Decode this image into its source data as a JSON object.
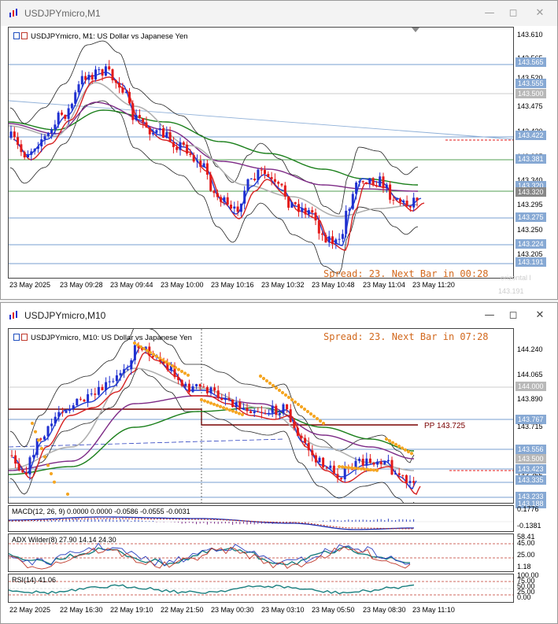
{
  "top_window": {
    "title": "USDJPYmicro,M1",
    "chart_header": "USDJPYmicro, M1:  US Dollar vs Japanese Yen",
    "spread_text": "Spread: 23. Next Bar in 00:28",
    "price_ticks": [
      "143.610",
      "143.565",
      "143.520",
      "143.475",
      "143.430",
      "143.385",
      "143.340",
      "143.295",
      "143.250",
      "143.205"
    ],
    "tags": [
      {
        "text": "143.565",
        "style": "blue"
      },
      {
        "text": "143.555",
        "style": "blue"
      },
      {
        "text": "143.500",
        "style": "grey"
      },
      {
        "text": "143.422",
        "style": "blue"
      },
      {
        "text": "143.381",
        "style": "blue"
      },
      {
        "text": "143.320",
        "style": "blue"
      },
      {
        "text": "143.320",
        "style": "dark"
      },
      {
        "text": "143.275",
        "style": "blue"
      },
      {
        "text": "143.224",
        "style": "blue"
      },
      {
        "text": "143.191",
        "style": "blue"
      }
    ],
    "ghost_texts": [
      "orizontal l",
      "143.191"
    ],
    "time_labels": [
      "23 May 2025",
      "23 May 09:28",
      "23 May 09:44",
      "23 May 10:00",
      "23 May 10:16",
      "23 May 10:32",
      "23 May 10:48",
      "23 May 11:04",
      "23 May 11:20"
    ]
  },
  "bottom_window": {
    "title": "USDJPYmicro,M10",
    "chart_header": "USDJPYmicro, M10:  US Dollar vs Japanese Yen",
    "spread_text": "Spread: 23. Next Bar in 07:28",
    "pivot_label": "PP 143.725",
    "price_ticks": [
      "144.240",
      "144.065",
      "143.890",
      "143.715",
      "143.540",
      "143.365"
    ],
    "tags": [
      {
        "text": "144.000",
        "style": "grey"
      },
      {
        "text": "143.767",
        "style": "blue"
      },
      {
        "text": "143.556",
        "style": "blue"
      },
      {
        "text": "143.500",
        "style": "grey"
      },
      {
        "text": "143.423",
        "style": "blue"
      },
      {
        "text": "143.335",
        "style": "blue"
      },
      {
        "text": "143.233",
        "style": "blue"
      },
      {
        "text": "143.188",
        "style": "blue"
      }
    ],
    "macd": {
      "label": "MACD(12, 26, 9) 0.0000 0.0000 -0.0586 -0.0555 -0.0031",
      "ticks": [
        "0.1776",
        "-0.1381"
      ]
    },
    "adx": {
      "label": "ADX Wilder(8) 27.90 14.14 24.30",
      "ticks": [
        "58.41",
        "45.00",
        "25.00",
        "1.18"
      ]
    },
    "rsi": {
      "label": "RSI(14) 41.06",
      "ticks": [
        "100.00",
        "75.00",
        "50.00",
        "25.00",
        "0.00"
      ]
    },
    "time_labels": [
      "22 May 2025",
      "22 May 16:30",
      "22 May 19:10",
      "22 May 21:50",
      "23 May 00:30",
      "23 May 03:10",
      "23 May 05:50",
      "23 May 08:30",
      "23 May 11:10"
    ]
  },
  "colors": {
    "bull": "#1f2fd0",
    "bear": "#e31a1a",
    "ma_green": "#1a7f1a",
    "ma_purple": "#7d2a86",
    "ma_grey": "#b0b0b0",
    "sar": "#f5a623",
    "tag_blue": "#87a9d4"
  }
}
